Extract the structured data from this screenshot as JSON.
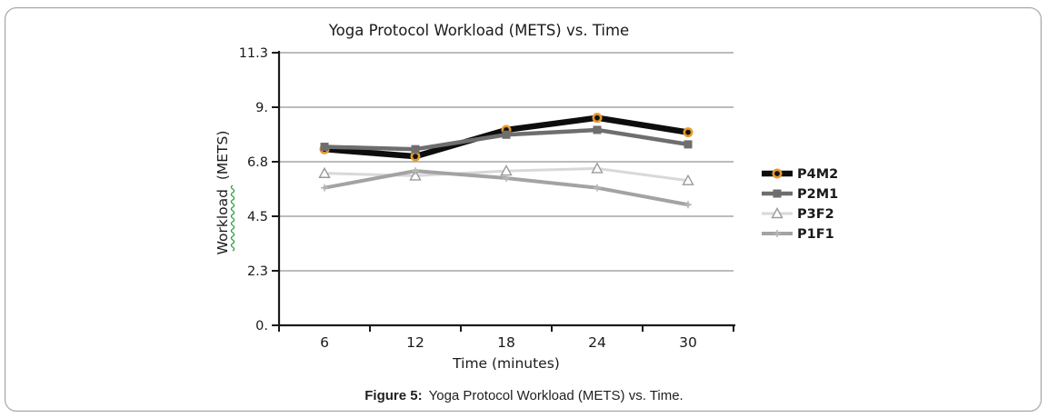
{
  "figure": {
    "caption_prefix": "Figure 5:",
    "caption_text": "Yoga Protocol Workload (METS) vs. Time."
  },
  "chart_data": {
    "type": "line",
    "title": "Yoga Protocol Workload (METS) vs. Time",
    "xlabel": "Time (minutes)",
    "ylabel": "Workload  (METS)",
    "categories": [
      6,
      12,
      18,
      24,
      30
    ],
    "x_tick_labels": [
      "6",
      "12",
      "18",
      "24",
      "30"
    ],
    "y_ticks": [
      {
        "label": "0.",
        "value": 0
      },
      {
        "label": "2.3",
        "value": 2.26
      },
      {
        "label": "4.5",
        "value": 4.52
      },
      {
        "label": "6.8",
        "value": 6.78
      },
      {
        "label": "9.",
        "value": 9.04
      },
      {
        "label": "11.3",
        "value": 11.3
      }
    ],
    "ylim": [
      0,
      11.3
    ],
    "grid": "horizontal",
    "legend_position": "right",
    "series": [
      {
        "name": "P4M2",
        "values": [
          7.3,
          7.0,
          8.1,
          8.6,
          8.0
        ],
        "color": "#0d0d0d",
        "line_width": 6.5,
        "marker": "circle-orange"
      },
      {
        "name": "P2M1",
        "values": [
          7.4,
          7.3,
          7.9,
          8.1,
          7.5
        ],
        "color": "#6e6e6e",
        "line_width": 4.5,
        "marker": "square"
      },
      {
        "name": "P3F2",
        "values": [
          6.3,
          6.2,
          6.4,
          6.5,
          6.0
        ],
        "color": "#d8d8d8",
        "line_width": 3,
        "marker": "triangle-open"
      },
      {
        "name": "P1F1",
        "values": [
          5.7,
          6.4,
          6.1,
          5.7,
          5.0
        ],
        "color": "#a3a3a3",
        "line_width": 4,
        "marker": "plus"
      }
    ],
    "colors": {
      "axis": "#1a1a1a",
      "grid": "#a6a6a6",
      "text": "#1a1a1a",
      "circle_ring": "#e8992e",
      "circle_fill": "#141414",
      "triangle_stroke": "#9a9a9a",
      "triangle_fill": "#ffffff",
      "plus": "#b8b8b8",
      "ylabel_squiggle": "#2fa14b"
    }
  }
}
